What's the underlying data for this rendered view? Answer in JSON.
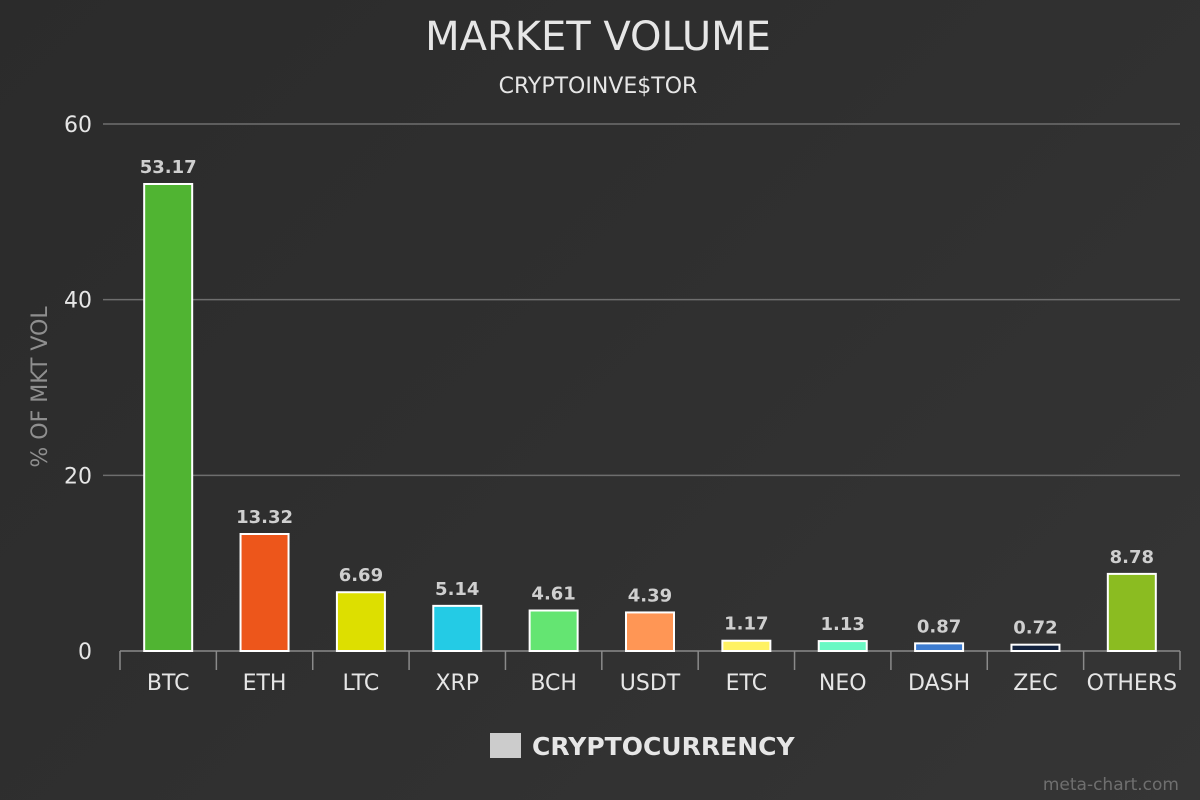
{
  "chart_data": {
    "type": "bar",
    "title": "MARKET VOLUME",
    "subtitle": "CRYPTOINVE$TOR",
    "xlabel": "",
    "ylabel": "% OF MKT VOL",
    "ylim": [
      0,
      60
    ],
    "yticks": [
      "0",
      "20",
      "40",
      "60"
    ],
    "grid": true,
    "legend_position": "bottom-center",
    "series": [
      {
        "name": "CRYPTOCURRENCY",
        "legend_color": "#cccccc"
      }
    ],
    "categories": [
      "BTC",
      "ETH",
      "LTC",
      "XRP",
      "BCH",
      "USDT",
      "ETC",
      "NEO",
      "DASH",
      "ZEC",
      "OTHERS"
    ],
    "values": [
      53.17,
      13.32,
      6.69,
      5.14,
      4.61,
      4.39,
      1.17,
      1.13,
      0.87,
      0.72,
      8.78
    ],
    "value_labels": [
      "53.17",
      "13.32",
      "6.69",
      "5.14",
      "4.61",
      "4.39",
      "1.17",
      "1.13",
      "0.87",
      "0.72",
      "8.78"
    ],
    "colors": [
      "#50b432",
      "#ed561b",
      "#dddf00",
      "#24cbe5",
      "#64e572",
      "#ff9655",
      "#fff263",
      "#6af9c4",
      "#3d7cd0",
      "#13233f",
      "#8bbc21"
    ],
    "credit": "meta-chart.com"
  }
}
